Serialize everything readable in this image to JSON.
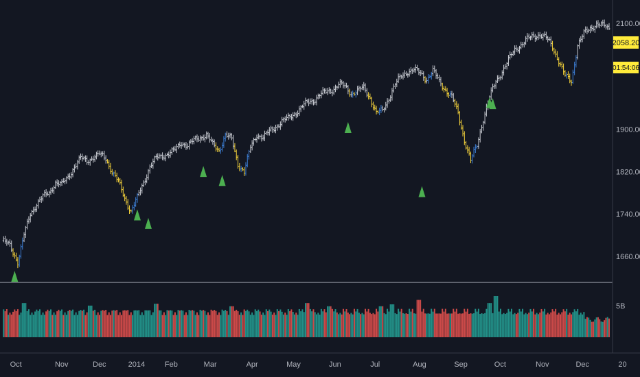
{
  "chart_data": {
    "type": "candlestick",
    "price_axis": {
      "range": [
        1600,
        2120
      ],
      "ticks": [
        "2100.00",
        "1900.00",
        "1820.00",
        "1740.00",
        "1660.00"
      ],
      "tick_values": [
        2100,
        1900,
        1820,
        1740,
        1660
      ]
    },
    "volume_axis": {
      "ticks": [
        "5B"
      ],
      "tick_values": [
        5
      ],
      "range": [
        0,
        7
      ]
    },
    "x_labels": [
      "Oct",
      "Nov",
      "Dec",
      "2014",
      "Feb",
      "Mar",
      "Apr",
      "May",
      "Jun",
      "Jul",
      "Aug",
      "Sep",
      "Oct",
      "Nov",
      "Dec",
      "20"
    ],
    "x_label_positions": [
      0.01,
      0.086,
      0.15,
      0.21,
      0.272,
      0.338,
      0.41,
      0.478,
      0.55,
      0.62,
      0.692,
      0.762,
      0.83,
      0.9,
      0.968,
      1.04
    ],
    "last_price": "2058.20",
    "countdown": "01:54:06",
    "series": [
      {
        "name": "close",
        "x": [
          0,
          5,
          10,
          14,
          18,
          22,
          26,
          30,
          34,
          38,
          42,
          46,
          50,
          54,
          58,
          62,
          66,
          70,
          74,
          78,
          82,
          86,
          90,
          94,
          98,
          102,
          106,
          110,
          114,
          118,
          122,
          126,
          130,
          134,
          138,
          142,
          146,
          150,
          154,
          158,
          162,
          166,
          170,
          174,
          178,
          182,
          186,
          190,
          194,
          198,
          202,
          206,
          210,
          214,
          218
        ],
        "y": [
          1690,
          1680,
          1650,
          1700,
          1740,
          1760,
          1772,
          1780,
          1800,
          1795,
          1810,
          1830,
          1845,
          1840,
          1848,
          1852,
          1845,
          1820,
          1800,
          1770,
          1745,
          1770,
          1800,
          1830,
          1845,
          1850,
          1855,
          1860,
          1875,
          1870,
          1878,
          1885,
          1890,
          1870,
          1860,
          1890,
          1880,
          1835,
          1820,
          1865,
          1890,
          1885,
          1895,
          1905,
          1915,
          1920,
          1930,
          1940,
          1950,
          1955,
          1965,
          1970,
          1975,
          1985,
          1980
        ]
      },
      {
        "name": "close2",
        "x": [
          222,
          226,
          230,
          234,
          238,
          242,
          246,
          250,
          254,
          258,
          262,
          266,
          270,
          274,
          278,
          282,
          286,
          290,
          294,
          298,
          302,
          306,
          310,
          314,
          318,
          322,
          326,
          330,
          334,
          338,
          342
        ],
        "y": [
          1968,
          1972,
          1978,
          1960,
          1930,
          1935,
          1960,
          1985,
          2000,
          2010,
          2012,
          2005,
          1995,
          2010,
          1990,
          1975,
          1960,
          1930,
          1880,
          1840,
          1870,
          1920,
          1960,
          1990,
          2010,
          2030,
          2050,
          2060,
          2070,
          2075,
          2080
        ]
      },
      {
        "name": "close3",
        "x": [
          346,
          350,
          354,
          358,
          362,
          366,
          370,
          374,
          378,
          382,
          386
        ],
        "y": [
          2072,
          2055,
          2030,
          2000,
          1990,
          2060,
          2080,
          2090,
          2100,
          2095,
          2090
        ]
      }
    ],
    "highlight_colors": {
      "yellow": "#f5d33b",
      "blue": "#3d7fd6",
      "white": "#c9ccd3"
    },
    "signals": [
      {
        "x": 8,
        "price": 1612
      },
      {
        "x": 86,
        "price": 1728
      },
      {
        "x": 93,
        "price": 1712
      },
      {
        "x": 128,
        "price": 1810
      },
      {
        "x": 140,
        "price": 1793
      },
      {
        "x": 220,
        "price": 1893
      },
      {
        "x": 267,
        "price": 1772
      },
      {
        "x": 310,
        "price": 1940
      },
      {
        "x": 312,
        "price": 1938
      }
    ],
    "volume_colors": {
      "up": "#26a69a",
      "down": "#ef5350"
    },
    "volume_spikes": [
      {
        "idx": 14,
        "value": 5.4
      },
      {
        "idx": 56,
        "value": 5.0
      },
      {
        "idx": 98,
        "value": 5.3
      },
      {
        "idx": 146,
        "value": 4.9
      },
      {
        "idx": 194,
        "value": 5.4
      },
      {
        "idx": 208,
        "value": 4.9
      },
      {
        "idx": 241,
        "value": 4.9
      },
      {
        "idx": 248,
        "value": 5.2
      },
      {
        "idx": 265,
        "value": 5.9
      },
      {
        "idx": 310,
        "value": 5.4
      },
      {
        "idx": 314,
        "value": 6.5
      }
    ]
  },
  "colors": {
    "background": "#131722",
    "divider": "#787b86",
    "signal": "#4caf50",
    "tag_bg": "#ffeb3b"
  }
}
